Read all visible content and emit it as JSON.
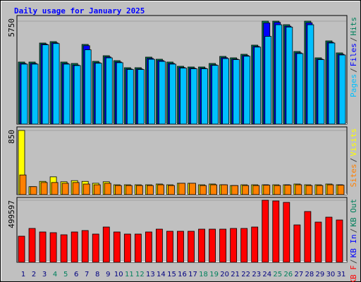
{
  "chart_data": [
    {
      "type": "bar",
      "title": "Daily usage for January 2025",
      "separator": "/",
      "ylim": [
        0,
        5750
      ],
      "yticks": [
        5750
      ],
      "series": [
        {
          "name": "Hits",
          "color": "#00805c",
          "values": [
            3466,
            3466,
            4529,
            4608,
            3466,
            3387,
            4450,
            3505,
            3820,
            3544,
            3150,
            3150,
            3741,
            3623,
            3466,
            3229,
            3190,
            3190,
            3387,
            3781,
            3702,
            3899,
            4411,
            5750,
            5750,
            5553,
            4056,
            5750,
            3702,
            4647,
            3977
          ]
        },
        {
          "name": "Files",
          "color": "#0000ff",
          "values": [
            3390,
            3390,
            4470,
            4540,
            3390,
            3300,
            4380,
            3430,
            3750,
            3470,
            3080,
            3080,
            3670,
            3550,
            3390,
            3160,
            3120,
            3120,
            3310,
            3710,
            3630,
            3830,
            4340,
            5650,
            5680,
            5470,
            3980,
            5660,
            3630,
            4570,
            3900
          ]
        },
        {
          "name": "Pages",
          "color": "#00c0ff",
          "values": [
            3350,
            3350,
            4430,
            4500,
            3350,
            3270,
            4150,
            3400,
            3700,
            3430,
            3050,
            3050,
            3620,
            3500,
            3350,
            3130,
            3090,
            3090,
            3280,
            3660,
            3600,
            3790,
            4300,
            4900,
            5550,
            5420,
            3940,
            5550,
            3600,
            4530,
            3860
          ]
        }
      ]
    },
    {
      "type": "bar",
      "ylim": [
        0,
        850
      ],
      "yticks": [
        850
      ],
      "series": [
        {
          "name": "Visits",
          "color": "#ffff00",
          "values": [
            850,
            105,
            175,
            235,
            170,
            185,
            175,
            150,
            170,
            130,
            130,
            130,
            130,
            140,
            130,
            150,
            150,
            130,
            140,
            130,
            120,
            130,
            130,
            130,
            130,
            130,
            140,
            130,
            130,
            140,
            130
          ]
        },
        {
          "name": "Sites",
          "color": "#ff8000",
          "values": [
            260,
            105,
            160,
            160,
            150,
            160,
            140,
            130,
            150,
            120,
            120,
            120,
            120,
            130,
            120,
            150,
            150,
            120,
            130,
            130,
            120,
            120,
            120,
            125,
            120,
            125,
            130,
            120,
            120,
            130,
            125
          ]
        }
      ]
    },
    {
      "type": "bar",
      "ylim": [
        0,
        499597
      ],
      "yticks": [
        499597
      ],
      "categories": [
        "1",
        "2",
        "3",
        "4",
        "5",
        "6",
        "7",
        "8",
        "9",
        "10",
        "11",
        "12",
        "13",
        "14",
        "15",
        "16",
        "17",
        "18",
        "19",
        "20",
        "21",
        "22",
        "23",
        "24",
        "25",
        "26",
        "27",
        "28",
        "29",
        "30",
        "31"
      ],
      "category_colors": [
        "#000080",
        "#000080",
        "#000080",
        "#00805c",
        "#00805c",
        "#000080",
        "#000080",
        "#000080",
        "#000080",
        "#000080",
        "#00805c",
        "#00805c",
        "#000080",
        "#000080",
        "#000080",
        "#000080",
        "#000080",
        "#00805c",
        "#00805c",
        "#000080",
        "#000080",
        "#000080",
        "#000080",
        "#000080",
        "#00805c",
        "#00805c",
        "#000080",
        "#000080",
        "#000080",
        "#000080",
        "#000080"
      ],
      "series": [
        {
          "name": "KB F",
          "color": "#ff0000",
          "values": [
            210000,
            272500,
            244100,
            238400,
            221400,
            244100,
            255500,
            227100,
            283900,
            244100,
            227100,
            227100,
            244100,
            266800,
            249800,
            249800,
            249800,
            266800,
            266800,
            266800,
            272500,
            272500,
            283900,
            499597,
            493900,
            482500,
            300900,
            408700,
            323600,
            363300,
            340600
          ]
        }
      ],
      "legend_more": [
        {
          "name": "KB In",
          "color": "#0000ff"
        },
        {
          "name": "KB Out",
          "color": "#00805c"
        }
      ]
    }
  ]
}
